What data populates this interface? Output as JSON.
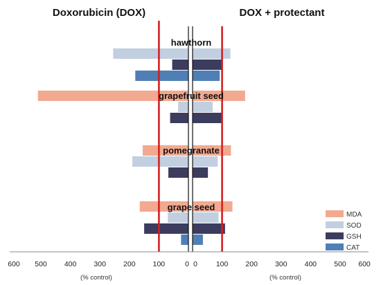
{
  "chart_data": {
    "type": "bar",
    "orientation": "horizontal-butterfly",
    "panels": [
      {
        "side": "left",
        "title": "Doxorubicin (DOX)"
      },
      {
        "side": "right",
        "title": "DOX + protectant"
      }
    ],
    "categories": [
      "hawthorn",
      "grapefruit seed",
      "pomegranate",
      "grape seed"
    ],
    "series": [
      {
        "name": "MDA",
        "color": "#f3a98f",
        "left": [
          null,
          510,
          155,
          165
        ],
        "right": [
          null,
          178,
          130,
          135
        ]
      },
      {
        "name": "SOD",
        "color": "#c2cfe0",
        "left": [
          255,
          35,
          190,
          70
        ],
        "right": [
          128,
          68,
          85,
          88
        ]
      },
      {
        "name": "GSH",
        "color": "#3b3c5e",
        "left": [
          55,
          62,
          68,
          150
        ],
        "right": [
          102,
          102,
          52,
          110
        ]
      },
      {
        "name": "CAT",
        "color": "#4f7fb5",
        "left": [
          180,
          null,
          null,
          25
        ],
        "right": [
          92,
          null,
          null,
          35
        ]
      }
    ],
    "reference_lines": [
      {
        "value": 100,
        "color": "#d42020",
        "sides": [
          "left",
          "right"
        ]
      }
    ],
    "xlim": [
      0,
      600
    ],
    "xticks": [
      "600",
      "500",
      "400",
      "300",
      "200",
      "100",
      "0",
      "0",
      "100",
      "200",
      "300",
      "400",
      "500",
      "600"
    ],
    "xlabel_left": "(% control)",
    "xlabel_right": "(% control)",
    "legend": {
      "position": "bottom-right",
      "entries": [
        "MDA",
        "SOD",
        "GSH",
        "CAT"
      ]
    }
  }
}
